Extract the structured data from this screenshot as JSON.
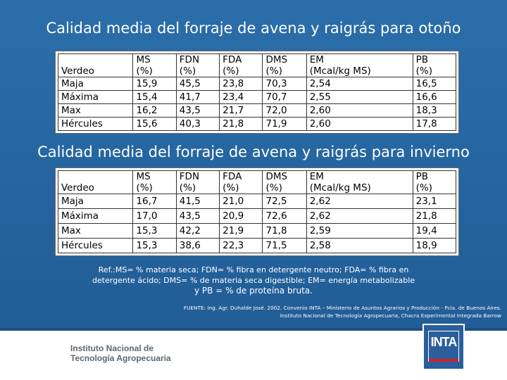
{
  "titles": {
    "autumn": "Calidad media del forraje de avena y raigrás para otoño",
    "winter": "Calidad media del forraje de avena y raigrás para invierno"
  },
  "tables": {
    "autumn": {
      "headers": [
        [
          "",
          "Verdeo"
        ],
        [
          "MS",
          "(%)"
        ],
        [
          "FDN",
          "(%)"
        ],
        [
          "FDA",
          "(%)"
        ],
        [
          "DMS",
          "(%)"
        ],
        [
          "EM",
          "(Mcal/kg MS)"
        ],
        [
          "PB",
          " (%)"
        ]
      ],
      "rows": [
        [
          "Maja",
          "15,9",
          "45,5",
          "23,8",
          "70,3",
          "2,54",
          "16,5"
        ],
        [
          "Máxima",
          "15,4",
          "41,7",
          "23,4",
          "70,7",
          "2,55",
          "16,6"
        ],
        [
          "Max",
          "16,2",
          "43,5",
          "21,7",
          "72,0",
          "2,60",
          "18,3"
        ],
        [
          "Hércules",
          "15,6",
          "40,3",
          "21,8",
          "71,9",
          "2,60",
          "17,8"
        ]
      ]
    },
    "winter": {
      "headers": [
        [
          "",
          "Verdeo"
        ],
        [
          "MS",
          "(%)"
        ],
        [
          "FDN",
          "(%)"
        ],
        [
          "FDA",
          "(%)"
        ],
        [
          "DMS",
          "(%)"
        ],
        [
          "EM",
          "(Mcal/kg MS)"
        ],
        [
          "PB",
          "(%)"
        ]
      ],
      "rows": [
        [
          "Maja",
          "16,7",
          "41,5",
          "21,0",
          "72,5",
          "2,62",
          "23,1"
        ],
        [
          "Máxima",
          "17,0",
          "43,5",
          "20,9",
          "72,6",
          "2,62",
          "21,8"
        ],
        [
          "Max",
          "15,3",
          "42,2",
          "21,9",
          "71,8",
          "2,59",
          "19,4"
        ],
        [
          "Hércules",
          "15,3",
          "38,6",
          "22,3",
          "71,5",
          "2,58",
          "18,9"
        ]
      ]
    }
  },
  "notes": {
    "line1": "Ref.:MS= % materia seca; FDN= % fibra en detergente neutro; FDA= % fibra en",
    "line2": "detergente ácido; DMS= % de materia seca digestible; EM= energía metabolizable",
    "line3": "y PB = % de proteína bruta."
  },
  "source": {
    "line1": "FUENTE: Ing. Agr. Duhalde José. 2002. Convenio INTA – Ministerio de Asuntos Agrarios y Producción - Pcia. de Buenos Aires.",
    "line2": "Instituto Nacional de Tecnología Agropecuaria, Chacra Experimental Integrada Barrow"
  },
  "footer": {
    "org_line1": "Instituto Nacional de",
    "org_line2": "Tecnología Agropecuaria",
    "logo_text": "INTA"
  },
  "colors": {
    "background": "#2a6ba6",
    "logo_red": "#d0202a"
  }
}
